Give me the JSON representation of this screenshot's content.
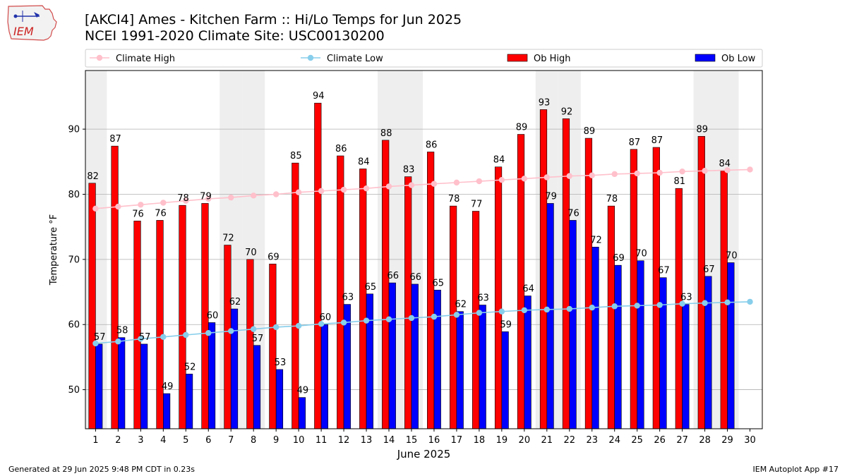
{
  "header": {
    "logo_text": "IEM",
    "title_line1": "[AKCI4] Ames - Kitchen Farm :: Hi/Lo Temps for Jun 2025",
    "title_line2": "NCEI 1991-2020 Climate Site: USC00130200"
  },
  "footer": {
    "left": "Generated at 29 Jun 2025 9:48 PM CDT in 0.23s",
    "right": "IEM Autoplot App #17"
  },
  "chart_data": {
    "type": "bar",
    "xlabel": "June 2025",
    "ylabel": "Temperature °F",
    "ylim": [
      44,
      99
    ],
    "yticks": [
      50,
      60,
      70,
      80,
      90
    ],
    "grid": "horizontal",
    "legend_position": "top",
    "weekend_shading": true,
    "days": [
      1,
      2,
      3,
      4,
      5,
      6,
      7,
      8,
      9,
      10,
      11,
      12,
      13,
      14,
      15,
      16,
      17,
      18,
      19,
      20,
      21,
      22,
      23,
      24,
      25,
      26,
      27,
      28,
      29,
      30
    ],
    "weekend_days": [
      1,
      7,
      8,
      14,
      15,
      21,
      22,
      28,
      29
    ],
    "series": [
      {
        "name": "Climate High",
        "kind": "line",
        "color": "#ffc0cb",
        "values": [
          77.8,
          78.1,
          78.4,
          78.7,
          79.0,
          79.3,
          79.5,
          79.8,
          80.0,
          80.3,
          80.5,
          80.7,
          80.9,
          81.2,
          81.4,
          81.6,
          81.8,
          82.0,
          82.2,
          82.4,
          82.6,
          82.8,
          82.9,
          83.1,
          83.2,
          83.3,
          83.5,
          83.6,
          83.7,
          83.8
        ]
      },
      {
        "name": "Climate Low",
        "kind": "line",
        "color": "#87ceeb",
        "values": [
          57.1,
          57.4,
          57.8,
          58.1,
          58.4,
          58.7,
          59.0,
          59.3,
          59.6,
          59.8,
          60.1,
          60.3,
          60.6,
          60.8,
          61.0,
          61.2,
          61.5,
          61.8,
          62.0,
          62.2,
          62.3,
          62.4,
          62.6,
          62.8,
          62.9,
          63.0,
          63.2,
          63.3,
          63.4,
          63.5
        ]
      },
      {
        "name": "Ob High",
        "kind": "bar",
        "color": "#ff0000",
        "values": [
          81.7,
          87.4,
          75.9,
          76.0,
          78.3,
          78.6,
          72.2,
          70.0,
          69.3,
          84.8,
          94.0,
          85.9,
          83.9,
          88.3,
          82.7,
          86.5,
          78.2,
          77.4,
          84.2,
          89.2,
          93.0,
          91.6,
          88.6,
          78.2,
          86.9,
          87.2,
          80.9,
          88.9,
          83.6
        ]
      },
      {
        "name": "Ob Low",
        "kind": "bar",
        "color": "#0000ff",
        "values": [
          57.0,
          58.0,
          57.0,
          49.4,
          52.4,
          60.3,
          62.4,
          56.8,
          53.1,
          48.8,
          60.0,
          63.1,
          64.7,
          66.4,
          66.2,
          65.3,
          62.0,
          63.0,
          58.9,
          64.4,
          78.6,
          76.0,
          71.9,
          69.1,
          69.8,
          67.2,
          63.1,
          67.4,
          69.5
        ]
      }
    ],
    "high_labels": [
      "82",
      "87",
      "76",
      "76",
      "78",
      "79",
      "72",
      "70",
      "69",
      "85",
      "94",
      "86",
      "84",
      "88",
      "83",
      "86",
      "78",
      "77",
      "84",
      "89",
      "93",
      "92",
      "89",
      "78",
      "87",
      "87",
      "81",
      "89",
      "84"
    ],
    "low_labels": [
      "57",
      "58",
      "57",
      "49",
      "52",
      "60",
      "62",
      "57",
      "53",
      "49",
      "60",
      "63",
      "65",
      "66",
      "66",
      "65",
      "62",
      "63",
      "59",
      "64",
      "79",
      "76",
      "72",
      "69",
      "70",
      "67",
      "63",
      "67",
      "70"
    ]
  }
}
